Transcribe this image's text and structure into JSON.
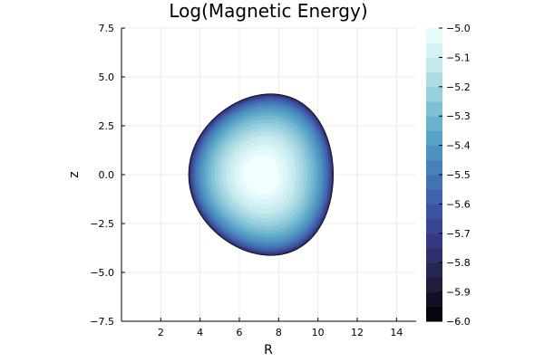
{
  "chart_data": {
    "type": "contour",
    "title": "Log(Magnetic Energy)",
    "xlabel": "R",
    "ylabel": "z",
    "xlim": [
      0,
      15
    ],
    "ylim": [
      -7.5,
      7.5
    ],
    "xticks": [
      2,
      4,
      6,
      8,
      10,
      12,
      14
    ],
    "xtick_labels": [
      "2",
      "4",
      "6",
      "8",
      "10",
      "12",
      "14"
    ],
    "yticks": [
      -7.5,
      -5.0,
      -2.5,
      0.0,
      2.5,
      5.0,
      7.5
    ],
    "ytick_labels": [
      "−7.5",
      "−5.0",
      "−2.5",
      "0.0",
      "2.5",
      "5.0",
      "7.5"
    ],
    "grid": true,
    "colorbar": {
      "range": [
        -6.0,
        -5.0
      ],
      "ticks": [
        -6.0,
        -5.9,
        -5.8,
        -5.7,
        -5.6,
        -5.5,
        -5.4,
        -5.3,
        -5.2,
        -5.1,
        -5.0
      ],
      "tick_labels": [
        "−6.0",
        "−5.9",
        "−5.8",
        "−5.7",
        "−5.6",
        "−5.5",
        "−5.4",
        "−5.3",
        "−5.2",
        "−5.1",
        "−5.0"
      ],
      "levels": 20,
      "colormap": [
        "#000000",
        "#1e1d3a",
        "#33337a",
        "#3d52a2",
        "#4579b6",
        "#56a1c6",
        "#8bc8d7",
        "#c5e9ed",
        "#f0ffff"
      ]
    },
    "shape": {
      "description": "D-shaped cross-section",
      "r_inner": 3.4,
      "r_outer": 10.8,
      "z_max": 4.15,
      "z_min": -4.15,
      "r_at_z_max": 7.6,
      "core_value": -5.0,
      "edge_value": -6.0
    }
  }
}
